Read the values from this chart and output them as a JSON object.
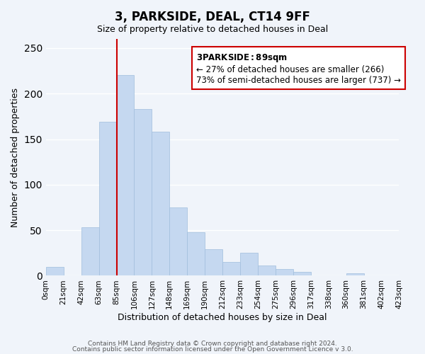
{
  "title": "3, PARKSIDE, DEAL, CT14 9FF",
  "subtitle": "Size of property relative to detached houses in Deal",
  "xlabel": "Distribution of detached houses by size in Deal",
  "ylabel": "Number of detached properties",
  "bar_color": "#c5d8f0",
  "bar_edge_color": "#a0bedd",
  "marker_line_color": "#cc0000",
  "marker_value": 89,
  "marker_bin_index": 4,
  "bins": [
    0,
    21,
    42,
    63,
    85,
    106,
    127,
    148,
    169,
    190,
    212,
    233,
    254,
    275,
    296,
    317,
    338,
    360,
    381,
    402,
    423
  ],
  "bin_labels": [
    "0sqm",
    "21sqm",
    "42sqm",
    "63sqm",
    "85sqm",
    "106sqm",
    "127sqm",
    "148sqm",
    "169sqm",
    "190sqm",
    "212sqm",
    "233sqm",
    "254sqm",
    "275sqm",
    "296sqm",
    "317sqm",
    "338sqm",
    "360sqm",
    "381sqm",
    "402sqm",
    "423sqm"
  ],
  "values": [
    10,
    0,
    53,
    169,
    220,
    183,
    158,
    75,
    48,
    29,
    15,
    25,
    11,
    7,
    4,
    0,
    0,
    3,
    0,
    0
  ],
  "annotation_title": "3 PARKSIDE: 89sqm",
  "annotation_line1": "← 27% of detached houses are smaller (266)",
  "annotation_line2": "73% of semi-detached houses are larger (737) →",
  "footer1": "Contains HM Land Registry data © Crown copyright and database right 2024.",
  "footer2": "Contains public sector information licensed under the Open Government Licence v 3.0.",
  "ylim": [
    0,
    260
  ],
  "background_color": "#f0f4fa",
  "grid_color": "#ffffff",
  "annotation_box_color": "#ffffff",
  "annotation_box_edge": "#cc0000"
}
